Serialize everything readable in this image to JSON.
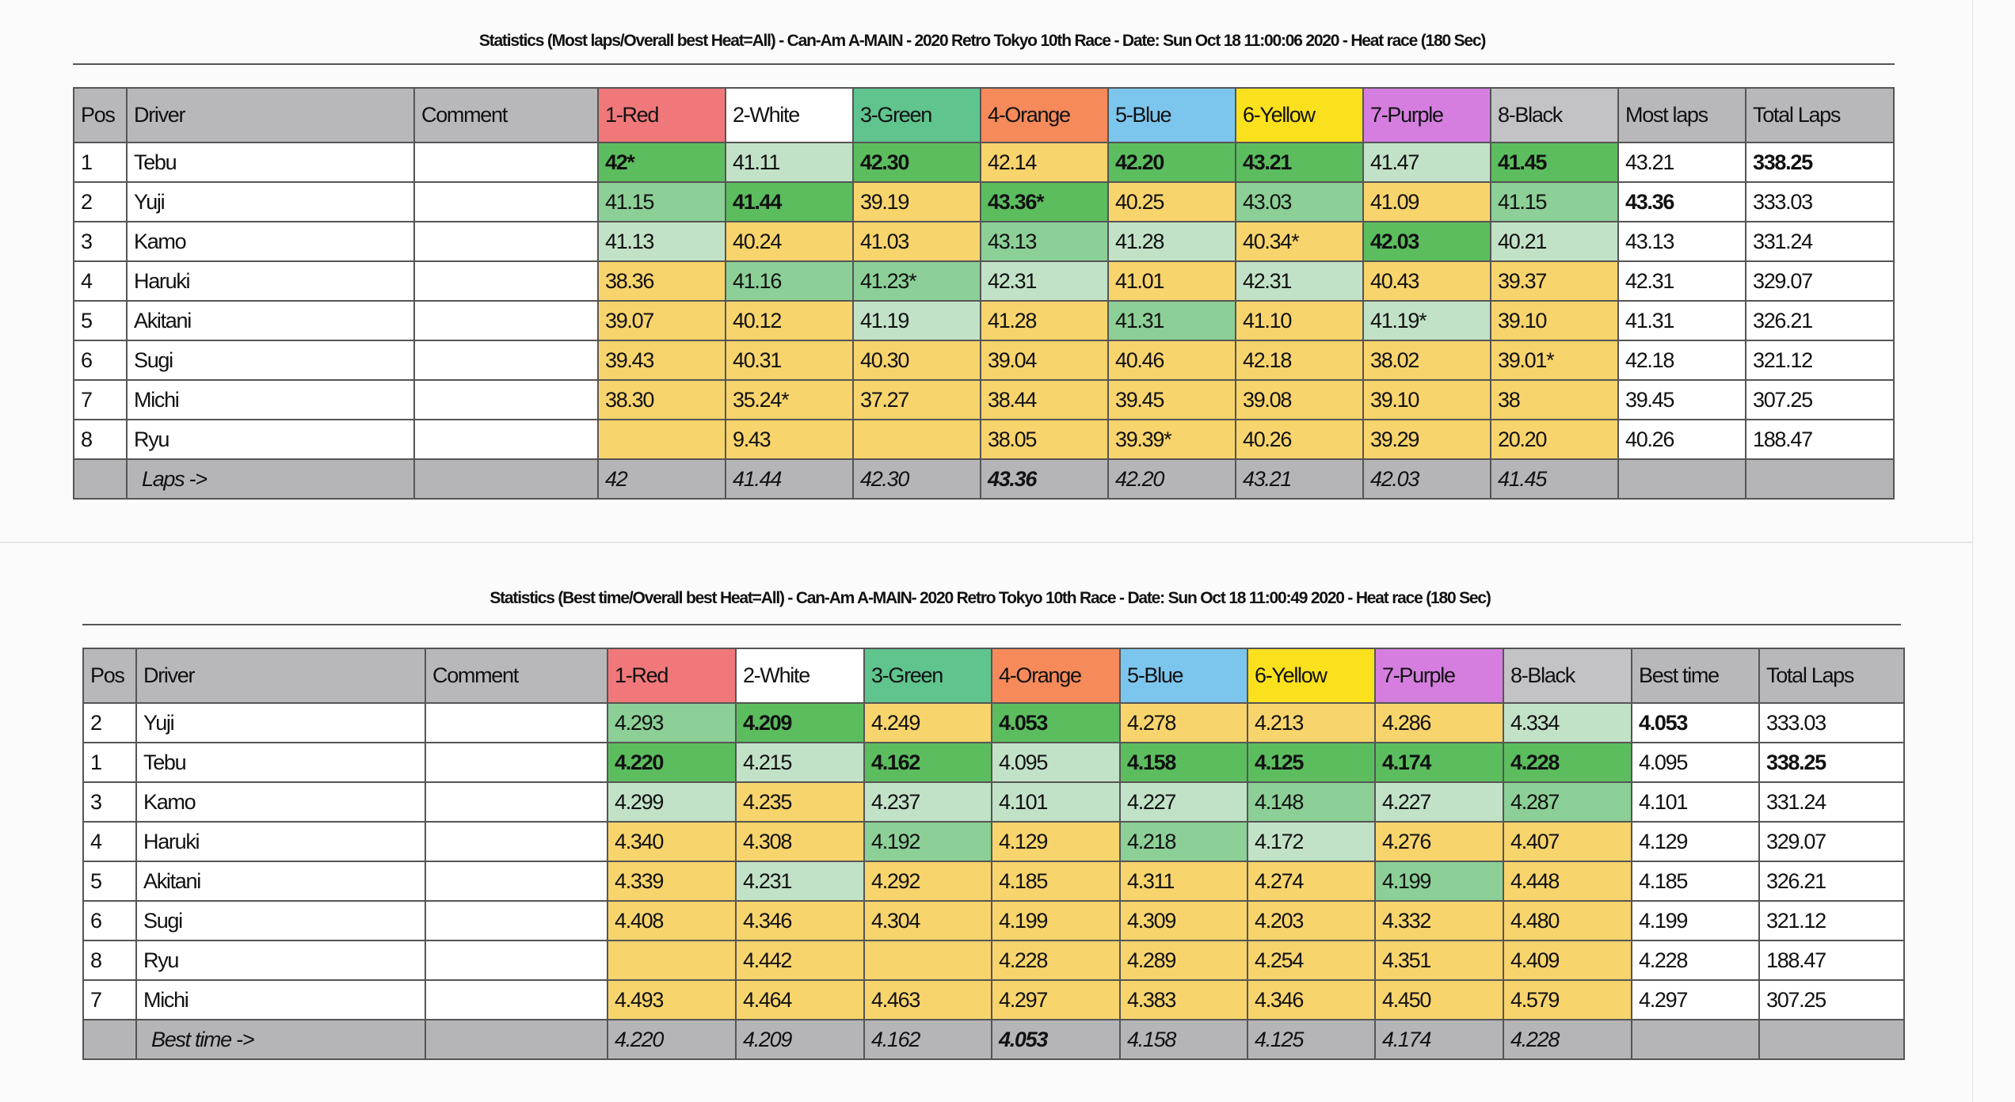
{
  "colors": {
    "header_gray": "#b8b8bb",
    "shade_best": "#5cbd5f",
    "shade_good": "#8ccf97",
    "shade_fair": "#c2e2c7",
    "shade_none": "#f8d46c"
  },
  "tables": [
    {
      "title": "Statistics (Most laps/Overall best Heat=All) - Can-Am A-MAIN - 2020 Retro Tokyo 10th Race - Date: Sun Oct 18 11:00:06 2020 - Heat race (180 Sec)",
      "headers": [
        "Pos",
        "Driver",
        "Comment",
        "1-Red",
        "2-White",
        "3-Green",
        "4-Orange",
        "5-Blue",
        "6-Yellow",
        "7-Purple",
        "8-Black",
        "Most laps",
        "Total Laps"
      ],
      "header_colors": [
        "#b8b8bb",
        "#b8b8bb",
        "#b8b8bb",
        "#f0787a",
        "#ffffff",
        "#5fc48e",
        "#f68a5a",
        "#7cc6ee",
        "#fbe11d",
        "#d57ee0",
        "#c3c3c6",
        "#b8b8bb",
        "#b8b8bb"
      ],
      "rows": [
        {
          "pos": "1",
          "driver": "Tebu",
          "comment": "",
          "cells": [
            "42*",
            "41.11",
            "42.30",
            "42.14",
            "42.20",
            "43.21",
            "41.47",
            "41.45"
          ],
          "shades": [
            "best",
            "fair",
            "best",
            "none",
            "best",
            "best",
            "fair",
            "best"
          ],
          "summary": "43.21",
          "total": "338.25",
          "summary_bold": false,
          "total_bold": true
        },
        {
          "pos": "2",
          "driver": "Yuji",
          "comment": "",
          "cells": [
            "41.15",
            "41.44",
            "39.19",
            "43.36*",
            "40.25",
            "43.03",
            "41.09",
            "41.15"
          ],
          "shades": [
            "good",
            "best",
            "none",
            "best",
            "none",
            "good",
            "none",
            "good"
          ],
          "summary": "43.36",
          "total": "333.03",
          "summary_bold": true,
          "total_bold": false
        },
        {
          "pos": "3",
          "driver": "Kamo",
          "comment": "",
          "cells": [
            "41.13",
            "40.24",
            "41.03",
            "43.13",
            "41.28",
            "40.34*",
            "42.03",
            "40.21"
          ],
          "shades": [
            "fair",
            "none",
            "none",
            "good",
            "fair",
            "none",
            "best",
            "fair"
          ],
          "summary": "43.13",
          "total": "331.24",
          "summary_bold": false,
          "total_bold": false
        },
        {
          "pos": "4",
          "driver": "Haruki",
          "comment": "",
          "cells": [
            "38.36",
            "41.16",
            "41.23*",
            "42.31",
            "41.01",
            "42.31",
            "40.43",
            "39.37"
          ],
          "shades": [
            "none",
            "good",
            "good",
            "fair",
            "none",
            "fair",
            "none",
            "none"
          ],
          "summary": "42.31",
          "total": "329.07",
          "summary_bold": false,
          "total_bold": false
        },
        {
          "pos": "5",
          "driver": "Akitani",
          "comment": "",
          "cells": [
            "39.07",
            "40.12",
            "41.19",
            "41.28",
            "41.31",
            "41.10",
            "41.19*",
            "39.10"
          ],
          "shades": [
            "none",
            "none",
            "fair",
            "none",
            "good",
            "none",
            "fair",
            "none"
          ],
          "summary": "41.31",
          "total": "326.21",
          "summary_bold": false,
          "total_bold": false
        },
        {
          "pos": "6",
          "driver": "Sugi",
          "comment": "",
          "cells": [
            "39.43",
            "40.31",
            "40.30",
            "39.04",
            "40.46",
            "42.18",
            "38.02",
            "39.01*"
          ],
          "shades": [
            "none",
            "none",
            "none",
            "none",
            "none",
            "none",
            "none",
            "none"
          ],
          "summary": "42.18",
          "total": "321.12",
          "summary_bold": false,
          "total_bold": false
        },
        {
          "pos": "7",
          "driver": "Michi",
          "comment": "",
          "cells": [
            "38.30",
            "35.24*",
            "37.27",
            "38.44",
            "39.45",
            "39.08",
            "39.10",
            "38"
          ],
          "shades": [
            "none",
            "none",
            "none",
            "none",
            "none",
            "none",
            "none",
            "none"
          ],
          "summary": "39.45",
          "total": "307.25",
          "summary_bold": false,
          "total_bold": false
        },
        {
          "pos": "8",
          "driver": "Ryu",
          "comment": "",
          "cells": [
            "",
            "9.43",
            "",
            "38.05",
            "39.39*",
            "40.26",
            "39.29",
            "20.20"
          ],
          "shades": [
            "none",
            "none",
            "none",
            "none",
            "none",
            "none",
            "none",
            "none"
          ],
          "summary": "40.26",
          "total": "188.47",
          "summary_bold": false,
          "total_bold": false
        }
      ],
      "footer_label": "Laps ->",
      "footer_values": [
        "42",
        "41.44",
        "42.30",
        "43.36",
        "42.20",
        "43.21",
        "42.03",
        "41.45"
      ],
      "footer_bold": [
        false,
        false,
        false,
        true,
        false,
        false,
        false,
        false
      ]
    },
    {
      "title": "Statistics (Best time/Overall best Heat=All) - Can-Am A-MAIN- 2020 Retro Tokyo 10th Race - Date: Sun Oct 18 11:00:49 2020 - Heat race (180 Sec)",
      "headers": [
        "Pos",
        "Driver",
        "Comment",
        "1-Red",
        "2-White",
        "3-Green",
        "4-Orange",
        "5-Blue",
        "6-Yellow",
        "7-Purple",
        "8-Black",
        "Best time",
        "Total Laps"
      ],
      "header_colors": [
        "#b8b8bb",
        "#b8b8bb",
        "#b8b8bb",
        "#f0787a",
        "#ffffff",
        "#5fc48e",
        "#f68a5a",
        "#7cc6ee",
        "#fbe11d",
        "#d57ee0",
        "#c3c3c6",
        "#b8b8bb",
        "#b8b8bb"
      ],
      "rows": [
        {
          "pos": "2",
          "driver": "Yuji",
          "comment": "",
          "cells": [
            "4.293",
            "4.209",
            "4.249",
            "4.053",
            "4.278",
            "4.213",
            "4.286",
            "4.334"
          ],
          "shades": [
            "good",
            "best",
            "none",
            "best",
            "none",
            "none",
            "none",
            "fair"
          ],
          "summary": "4.053",
          "total": "333.03",
          "summary_bold": true,
          "total_bold": false
        },
        {
          "pos": "1",
          "driver": "Tebu",
          "comment": "",
          "cells": [
            "4.220",
            "4.215",
            "4.162",
            "4.095",
            "4.158",
            "4.125",
            "4.174",
            "4.228"
          ],
          "shades": [
            "best",
            "fair",
            "best",
            "fair",
            "best",
            "best",
            "best",
            "best"
          ],
          "summary": "4.095",
          "total": "338.25",
          "summary_bold": false,
          "total_bold": true
        },
        {
          "pos": "3",
          "driver": "Kamo",
          "comment": "",
          "cells": [
            "4.299",
            "4.235",
            "4.237",
            "4.101",
            "4.227",
            "4.148",
            "4.227",
            "4.287"
          ],
          "shades": [
            "fair",
            "none",
            "fair",
            "fair",
            "fair",
            "good",
            "fair",
            "good"
          ],
          "summary": "4.101",
          "total": "331.24",
          "summary_bold": false,
          "total_bold": false
        },
        {
          "pos": "4",
          "driver": "Haruki",
          "comment": "",
          "cells": [
            "4.340",
            "4.308",
            "4.192",
            "4.129",
            "4.218",
            "4.172",
            "4.276",
            "4.407"
          ],
          "shades": [
            "none",
            "none",
            "good",
            "none",
            "good",
            "fair",
            "none",
            "none"
          ],
          "summary": "4.129",
          "total": "329.07",
          "summary_bold": false,
          "total_bold": false
        },
        {
          "pos": "5",
          "driver": "Akitani",
          "comment": "",
          "cells": [
            "4.339",
            "4.231",
            "4.292",
            "4.185",
            "4.311",
            "4.274",
            "4.199",
            "4.448"
          ],
          "shades": [
            "none",
            "fair",
            "none",
            "none",
            "none",
            "none",
            "good",
            "none"
          ],
          "summary": "4.185",
          "total": "326.21",
          "summary_bold": false,
          "total_bold": false
        },
        {
          "pos": "6",
          "driver": "Sugi",
          "comment": "",
          "cells": [
            "4.408",
            "4.346",
            "4.304",
            "4.199",
            "4.309",
            "4.203",
            "4.332",
            "4.480"
          ],
          "shades": [
            "none",
            "none",
            "none",
            "none",
            "none",
            "none",
            "none",
            "none"
          ],
          "summary": "4.199",
          "total": "321.12",
          "summary_bold": false,
          "total_bold": false
        },
        {
          "pos": "8",
          "driver": "Ryu",
          "comment": "",
          "cells": [
            "",
            "4.442",
            "",
            "4.228",
            "4.289",
            "4.254",
            "4.351",
            "4.409"
          ],
          "shades": [
            "none",
            "none",
            "none",
            "none",
            "none",
            "none",
            "none",
            "none"
          ],
          "summary": "4.228",
          "total": "188.47",
          "summary_bold": false,
          "total_bold": false
        },
        {
          "pos": "7",
          "driver": "Michi",
          "comment": "",
          "cells": [
            "4.493",
            "4.464",
            "4.463",
            "4.297",
            "4.383",
            "4.346",
            "4.450",
            "4.579"
          ],
          "shades": [
            "none",
            "none",
            "none",
            "none",
            "none",
            "none",
            "none",
            "none"
          ],
          "summary": "4.297",
          "total": "307.25",
          "summary_bold": false,
          "total_bold": false
        }
      ],
      "footer_label": "Best time ->",
      "footer_values": [
        "4.220",
        "4.209",
        "4.162",
        "4.053",
        "4.158",
        "4.125",
        "4.174",
        "4.228"
      ],
      "footer_bold": [
        false,
        false,
        false,
        true,
        false,
        false,
        false,
        false
      ]
    }
  ]
}
